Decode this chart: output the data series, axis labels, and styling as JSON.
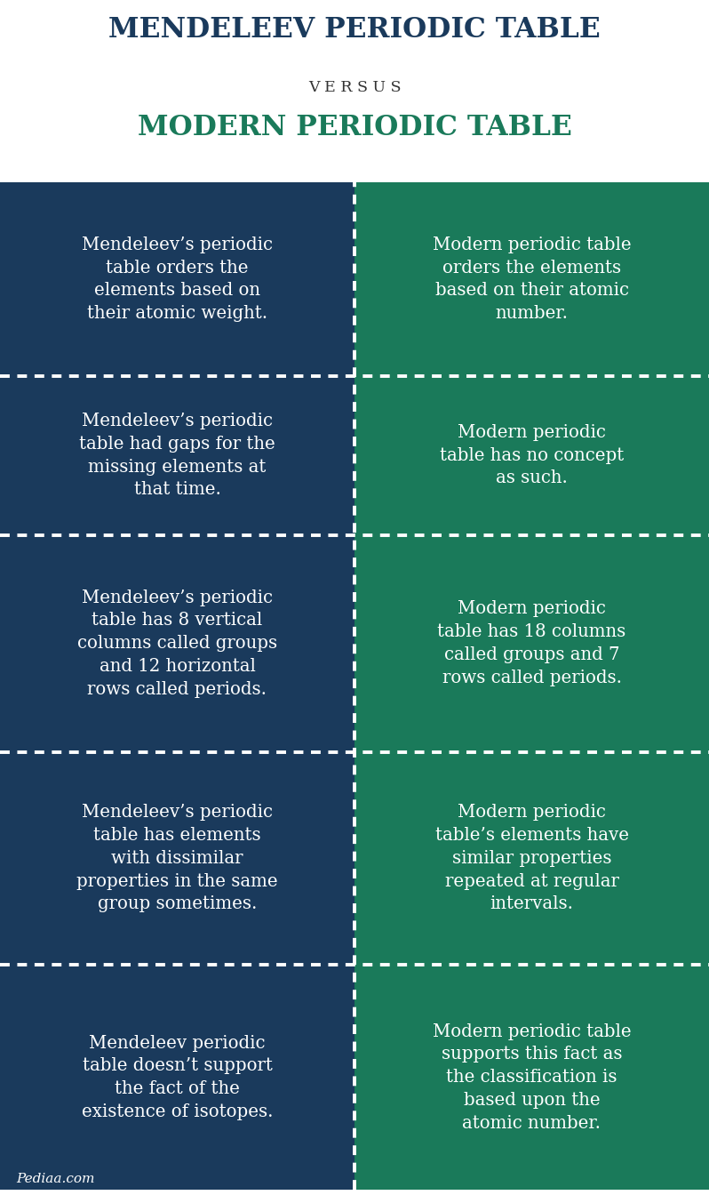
{
  "title1": "MENDELEEV PERIODIC TABLE",
  "versus": "V E R S U S",
  "title2": "MODERN PERIODIC TABLE",
  "title1_color": "#1a3a5c",
  "versus_color": "#333333",
  "title2_color": "#1a7a5a",
  "left_color": "#1a3a5c",
  "right_color": "#1a7a5a",
  "text_color": "#ffffff",
  "bg_color": "#ffffff",
  "watermark": "Pediaa.com",
  "rows": [
    {
      "left": "Mendeleev’s periodic\ntable orders the\nelements based on\ntheir atomic weight.",
      "right": "Modern periodic table\norders the elements\nbased on their atomic\nnumber."
    },
    {
      "left": "Mendeleev’s periodic\ntable had gaps for the\nmissing elements at\nthat time.",
      "right": "Modern periodic\ntable has no concept\nas such."
    },
    {
      "left": "Mendeleev’s periodic\ntable has 8 vertical\ncolumns called groups\nand 12 horizontal\nrows called periods.",
      "right": "Modern periodic\ntable has 18 columns\ncalled groups and 7\nrows called periods."
    },
    {
      "left": "Mendeleev’s periodic\ntable has elements\nwith dissimilar\nproperties in the same\ngroup sometimes.",
      "right": "Modern periodic\ntable’s elements have\nsimilar properties\nrepeated at regular\nintervals."
    },
    {
      "left": "Mendeleev periodic\ntable doesn’t support\nthe fact of the\nexistence of isotopes.",
      "right": "Modern periodic table\nsupports this fact as\nthe classification is\nbased upon the\natomic number."
    }
  ],
  "row_rel_heights": [
    1.0,
    0.82,
    1.12,
    1.1,
    1.16
  ]
}
